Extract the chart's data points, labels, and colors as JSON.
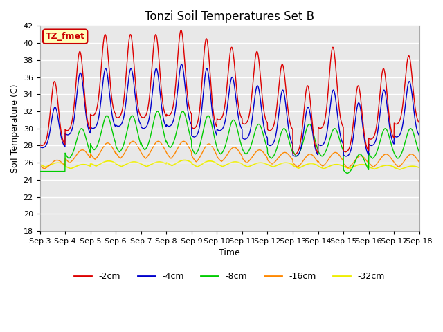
{
  "title": "Tonzi Soil Temperatures Set B",
  "xlabel": "Time",
  "ylabel": "Soil Temperature (C)",
  "ylim": [
    18,
    42
  ],
  "xlim": [
    0,
    15
  ],
  "x_tick_labels": [
    "Sep 3",
    "Sep 4",
    "Sep 5",
    "Sep 6",
    "Sep 7",
    "Sep 8",
    "Sep 9",
    "Sep 10",
    "Sep 11",
    "Sep 12",
    "Sep 13",
    "Sep 14",
    "Sep 15",
    "Sep 16",
    "Sep 17",
    "Sep 18"
  ],
  "series": {
    "-2cm": {
      "color": "#dd0000",
      "lw": 1.0,
      "ls": "-"
    },
    "-4cm": {
      "color": "#0000cc",
      "lw": 1.0,
      "ls": "-"
    },
    "-8cm": {
      "color": "#00cc00",
      "lw": 1.0,
      "ls": "-"
    },
    "-16cm": {
      "color": "#ff8800",
      "lw": 1.0,
      "ls": "-"
    },
    "-32cm": {
      "color": "#eeee00",
      "lw": 1.2,
      "ls": "-"
    }
  },
  "bg_color": "#e8e8e8",
  "fig_bg_color": "#ffffff",
  "annotation_text": "TZ_fmet",
  "annotation_bg": "#ffffbb",
  "annotation_border": "#cc0000",
  "title_fontsize": 12,
  "axis_fontsize": 9,
  "tick_fontsize": 8
}
